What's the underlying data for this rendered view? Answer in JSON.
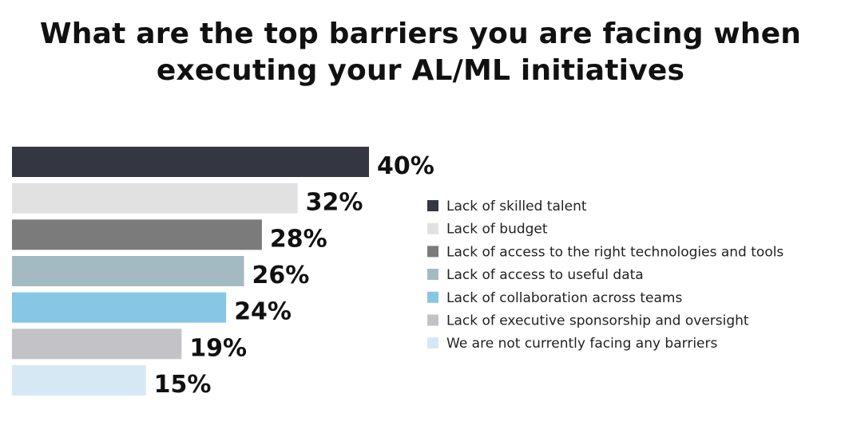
{
  "chart_data": {
    "type": "bar",
    "orientation": "horizontal",
    "title_lines": [
      "What are the top barriers you are facing when",
      "executing your AL/ML initiatives"
    ],
    "categories": [
      "Lack of skilled talent",
      "Lack of budget",
      "Lack of access to the right technologies and tools",
      "Lack of access to useful data",
      "Lack of collaboration across teams",
      "Lack of executive sponsorship and oversight",
      "We are not currently facing any barriers"
    ],
    "values": [
      40,
      32,
      28,
      26,
      24,
      19,
      15
    ],
    "value_labels": [
      "40%",
      "32%",
      "28%",
      "26%",
      "24%",
      "19%",
      "15%"
    ],
    "colors": [
      "#343641",
      "#e1e1e1",
      "#7b7b7b",
      "#a4bac2",
      "#88c6e5",
      "#c2c2c7",
      "#d6e8f4"
    ],
    "unit": "%",
    "xlim": [
      0,
      40
    ],
    "grid": false,
    "legend_position": "right"
  }
}
